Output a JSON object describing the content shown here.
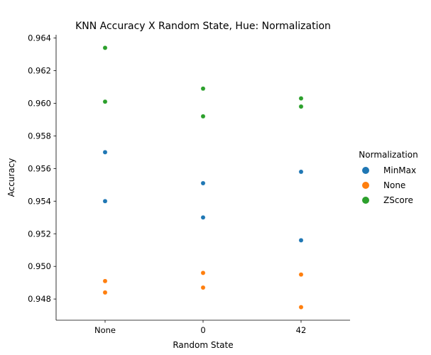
{
  "chart_data": {
    "type": "scatter",
    "title": "KNN Accuracy X Random State, Hue: Normalization",
    "xlabel": "Random State",
    "ylabel": "Accuracy",
    "categories": [
      "None",
      "0",
      "42"
    ],
    "ylim": [
      0.9467,
      0.9642
    ],
    "yticks": [
      0.948,
      0.95,
      0.952,
      0.954,
      0.956,
      0.958,
      0.96,
      0.962,
      0.964
    ],
    "ytick_labels": [
      "0.948",
      "0.950",
      "0.952",
      "0.954",
      "0.956",
      "0.958",
      "0.960",
      "0.962",
      "0.964"
    ],
    "grid": false,
    "legend": {
      "title": "Normalization",
      "placement": "right"
    },
    "series": [
      {
        "name": "MinMax",
        "color": "#1f77b4",
        "points": [
          {
            "x": "None",
            "y": 0.957
          },
          {
            "x": "None",
            "y": 0.954
          },
          {
            "x": "0",
            "y": 0.9551
          },
          {
            "x": "0",
            "y": 0.953
          },
          {
            "x": "42",
            "y": 0.9558
          },
          {
            "x": "42",
            "y": 0.9516
          }
        ]
      },
      {
        "name": "None",
        "color": "#ff7f0e",
        "points": [
          {
            "x": "None",
            "y": 0.9491
          },
          {
            "x": "None",
            "y": 0.9484
          },
          {
            "x": "0",
            "y": 0.9496
          },
          {
            "x": "0",
            "y": 0.9487
          },
          {
            "x": "42",
            "y": 0.9495
          },
          {
            "x": "42",
            "y": 0.9475
          }
        ]
      },
      {
        "name": "ZScore",
        "color": "#2ca02c",
        "points": [
          {
            "x": "None",
            "y": 0.9634
          },
          {
            "x": "None",
            "y": 0.9601
          },
          {
            "x": "0",
            "y": 0.9609
          },
          {
            "x": "0",
            "y": 0.9592
          },
          {
            "x": "42",
            "y": 0.9603
          },
          {
            "x": "42",
            "y": 0.9598
          }
        ]
      }
    ]
  }
}
